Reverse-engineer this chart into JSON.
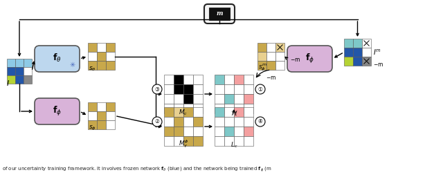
{
  "bg_color": "#ffffff",
  "blue_box_color": "#bdd7ee",
  "purple_box_color": "#d9b3d9",
  "tan_color": "#c8a84b",
  "light_tan": "#e8d090",
  "cyan_color": "#8ecae6",
  "blue_color": "#2356a8",
  "yellow_green": "#b5d334",
  "pink_color": "#f4a0a0",
  "light_blue_cell": "#7ec8c8",
  "black_cell": "#000000",
  "white_cell": "#ffffff",
  "gray_cell": "#888888",
  "caption": "of our uncertainty training framework. It involves frozen network $\\mathbf{f}_\\theta$ (blue) and the network being trained $\\mathbf{f}_\\phi$ (m"
}
